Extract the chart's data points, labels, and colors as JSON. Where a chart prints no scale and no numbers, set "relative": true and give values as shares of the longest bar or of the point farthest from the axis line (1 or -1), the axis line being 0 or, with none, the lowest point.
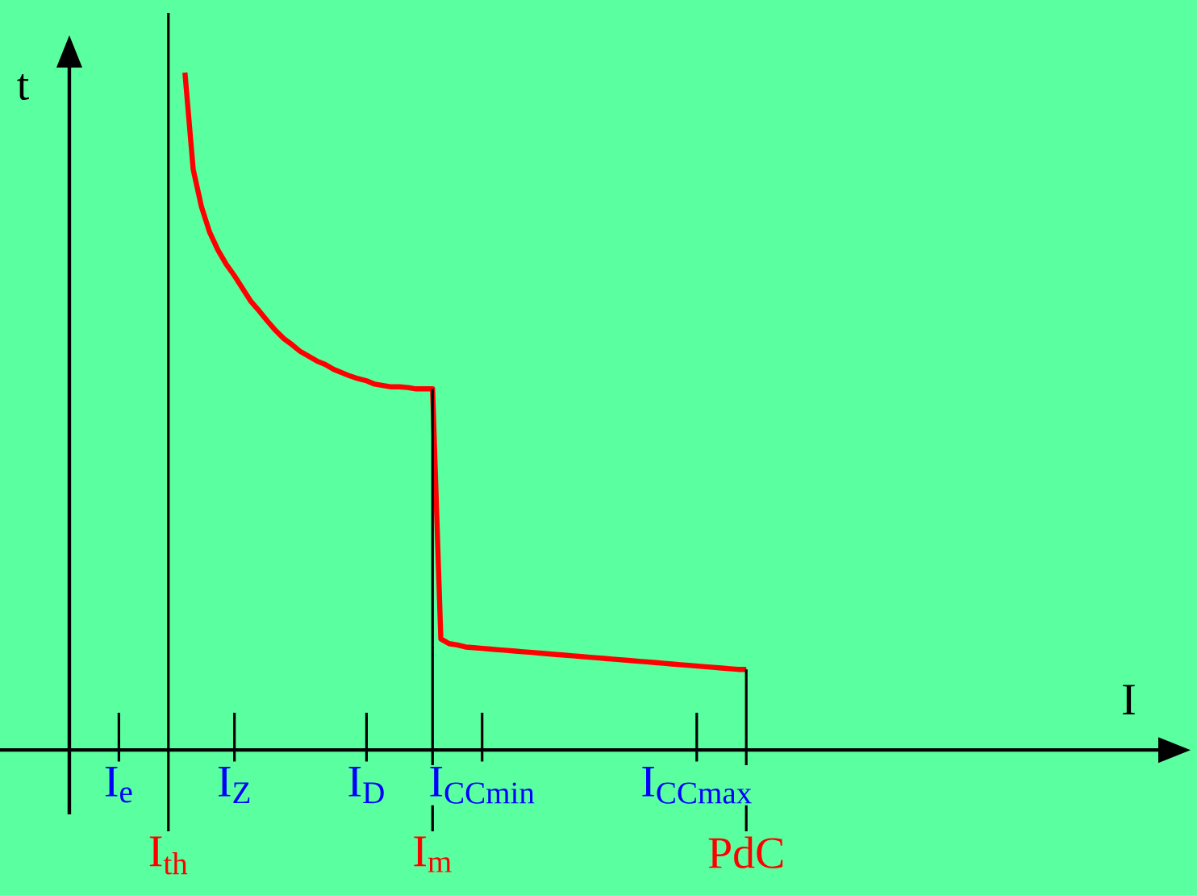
{
  "chart_data": {
    "type": "line",
    "relative": true,
    "annotations": [
      "I"
    ],
    "ylabel": "t",
    "categories": [
      null,
      null,
      null,
      null,
      null,
      null,
      "I$_{e}$",
      null,
      null,
      null,
      null,
      null,
      "I$_{th}$",
      null,
      null,
      null,
      null,
      null,
      null,
      null,
      "I$_{Z}$",
      null,
      null,
      null,
      null,
      null,
      null,
      null,
      null,
      null,
      null,
      null,
      null,
      null,
      null,
      null,
      "I$_{D}$",
      null,
      null,
      null,
      null,
      null,
      null,
      null,
      "I$_{m}$",
      null,
      null,
      null,
      null,
      null,
      "I$_{CCmin}$",
      null,
      null,
      null,
      null,
      null,
      null,
      null,
      null,
      null,
      null,
      null,
      null,
      null,
      null,
      null,
      null,
      null,
      null,
      null,
      null,
      null,
      null,
      null,
      null,
      null,
      "I$_{CCmax}$",
      null,
      null,
      null,
      null,
      null,
      "PdC"
    ],
    "ref_lines": [
      {
        "axis": "x",
        "value": "I$_{th}$",
        "color": "#000000"
      },
      {
        "axis": "x",
        "value": "I$_{m}$",
        "color": "#000000"
      },
      {
        "axis": "x",
        "value": "PdC",
        "color": "#000000"
      }
    ],
    "series": [
      {
        "color": "#ff0000",
        "values": [
          null,
          null,
          null,
          null,
          null,
          null,
          null,
          null,
          null,
          null,
          null,
          null,
          null,
          null,
          1.0,
          0.857,
          0.802,
          0.764,
          0.738,
          0.717,
          0.7,
          0.681,
          0.662,
          0.648,
          0.633,
          0.619,
          0.607,
          0.598,
          0.588,
          0.581,
          0.574,
          0.569,
          0.562,
          0.557,
          0.552,
          0.548,
          0.545,
          0.54,
          0.538,
          0.536,
          0.536,
          0.535,
          0.533,
          0.533,
          0.533,
          0.164,
          0.157,
          0.155,
          0.152,
          0.151,
          0.15,
          0.149,
          0.148,
          0.147,
          0.146,
          0.145,
          0.144,
          0.143,
          0.142,
          0.141,
          0.14,
          0.139,
          0.138,
          0.137,
          0.136,
          0.135,
          0.134,
          0.133,
          0.132,
          0.131,
          0.13,
          0.129,
          0.128,
          0.127,
          0.126,
          0.125,
          0.124,
          0.123,
          0.122,
          0.121,
          0.12,
          0.119,
          0.119
        ]
      }
    ],
    "grid": false,
    "marker": "none",
    "line_style": "solid"
  }
}
